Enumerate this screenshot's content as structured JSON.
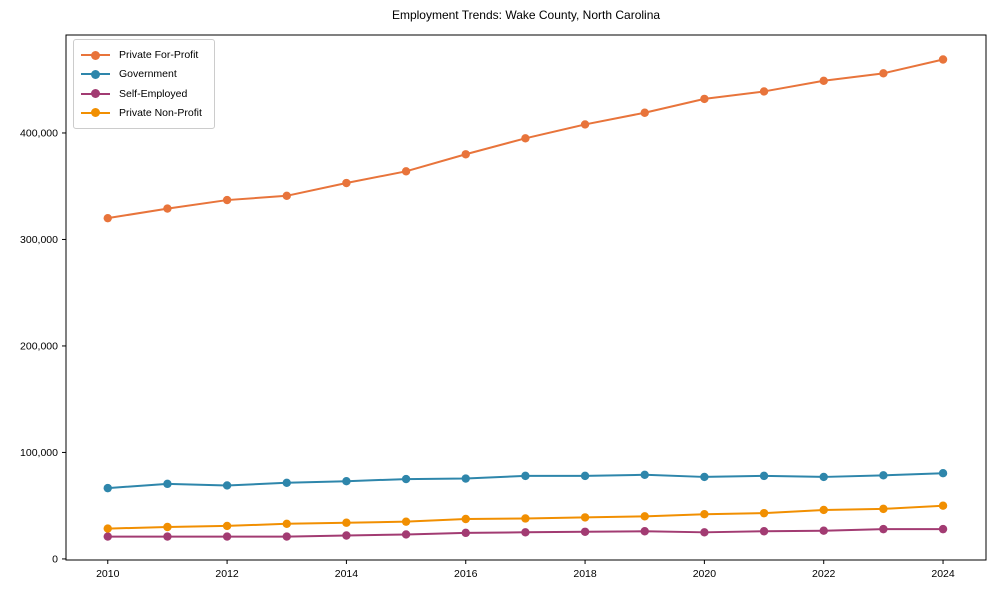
{
  "chart_data": {
    "type": "line",
    "title": "Employment Trends: Wake County, North Carolina",
    "xlabel": "",
    "ylabel": "",
    "grid": false,
    "legend_position": "upper-left",
    "marker": "circle",
    "background": "#ffffff",
    "axis_color": "#000000",
    "xlim": [
      2009.3,
      2024.72
    ],
    "ylim": [
      -1000,
      492000
    ],
    "x": [
      2010,
      2011,
      2012,
      2013,
      2014,
      2015,
      2016,
      2017,
      2018,
      2019,
      2020,
      2021,
      2022,
      2023,
      2024
    ],
    "series": [
      {
        "name": "Private For-Profit",
        "color": "#E8743B",
        "values": [
          320000,
          329000,
          337000,
          341000,
          353000,
          364000,
          380000,
          395000,
          408000,
          419000,
          432000,
          439000,
          449000,
          456000,
          469000
        ]
      },
      {
        "name": "Government",
        "color": "#2E86AB",
        "values": [
          66500,
          70500,
          69000,
          71500,
          73000,
          75000,
          75500,
          78000,
          78000,
          79000,
          77000,
          78000,
          77000,
          78500,
          80500
        ]
      },
      {
        "name": "Self-Employed",
        "color": "#A23B72",
        "values": [
          21000,
          21000,
          21000,
          21000,
          22000,
          23000,
          24500,
          25000,
          25500,
          26000,
          25000,
          26000,
          26500,
          28000,
          28000
        ]
      },
      {
        "name": "Private Non-Profit",
        "color": "#F18F01",
        "values": [
          28500,
          30000,
          31000,
          33000,
          34000,
          35000,
          37500,
          38000,
          39000,
          40000,
          42000,
          43000,
          46000,
          47000,
          50000
        ]
      }
    ],
    "xticks": {
      "values": [
        2010,
        2012,
        2014,
        2016,
        2018,
        2020,
        2022,
        2024
      ],
      "labels": [
        "2010",
        "2012",
        "2014",
        "2016",
        "2018",
        "2020",
        "2022",
        "2024"
      ]
    },
    "yticks": {
      "values": [
        0,
        100000,
        200000,
        300000,
        400000
      ],
      "labels": [
        "0",
        "100,000",
        "200,000",
        "300,000",
        "400,000"
      ]
    }
  }
}
